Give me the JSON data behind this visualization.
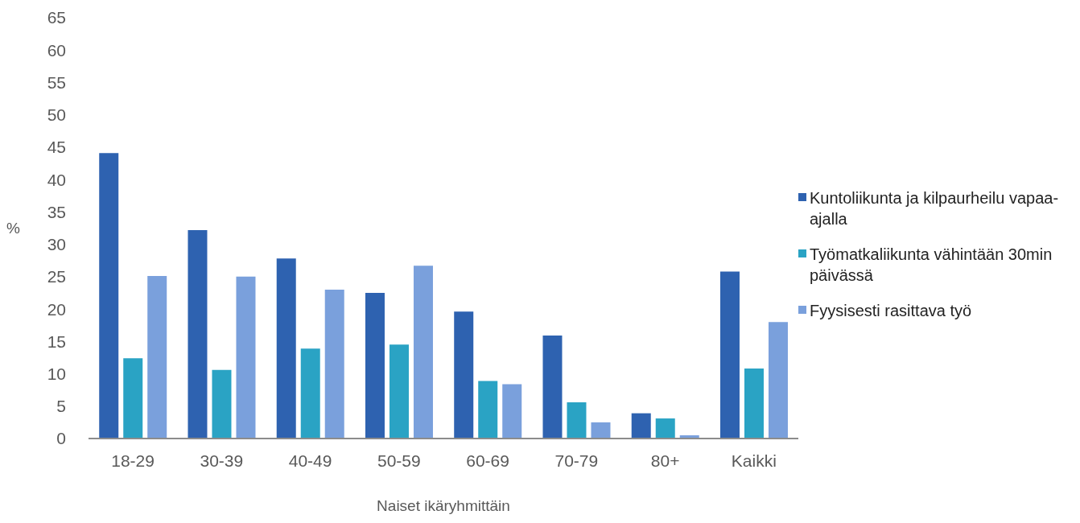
{
  "chart_data": {
    "type": "bar",
    "xlabel": "Naiset ikäryhmittäin",
    "ylabel": "%",
    "categories": [
      "18-29",
      "30-39",
      "40-49",
      "50-59",
      "60-69",
      "70-79",
      "80+",
      "Kaikki"
    ],
    "series": [
      {
        "name": "Kuntoliikunta ja kilpaurheilu vapaa-ajalla",
        "color": "#2e62b0",
        "values": [
          44.1,
          32.2,
          27.8,
          22.5,
          19.6,
          15.9,
          3.9,
          25.8
        ]
      },
      {
        "name": "Työmatkaliikunta vähintään 30min päivässä",
        "color": "#2aa3c4",
        "values": [
          12.4,
          10.6,
          13.9,
          14.5,
          8.9,
          5.6,
          3.1,
          10.8
        ]
      },
      {
        "name": "Fyysisesti rasittava työ",
        "color": "#7aa0dc",
        "values": [
          25.1,
          25.0,
          23.0,
          26.7,
          8.4,
          2.5,
          0.5,
          18.0
        ]
      }
    ],
    "ylim": [
      0,
      65
    ],
    "yticks": [
      0,
      5,
      10,
      15,
      20,
      25,
      30,
      35,
      40,
      45,
      50,
      55,
      60,
      65
    ],
    "grid": false,
    "legend": "right"
  }
}
